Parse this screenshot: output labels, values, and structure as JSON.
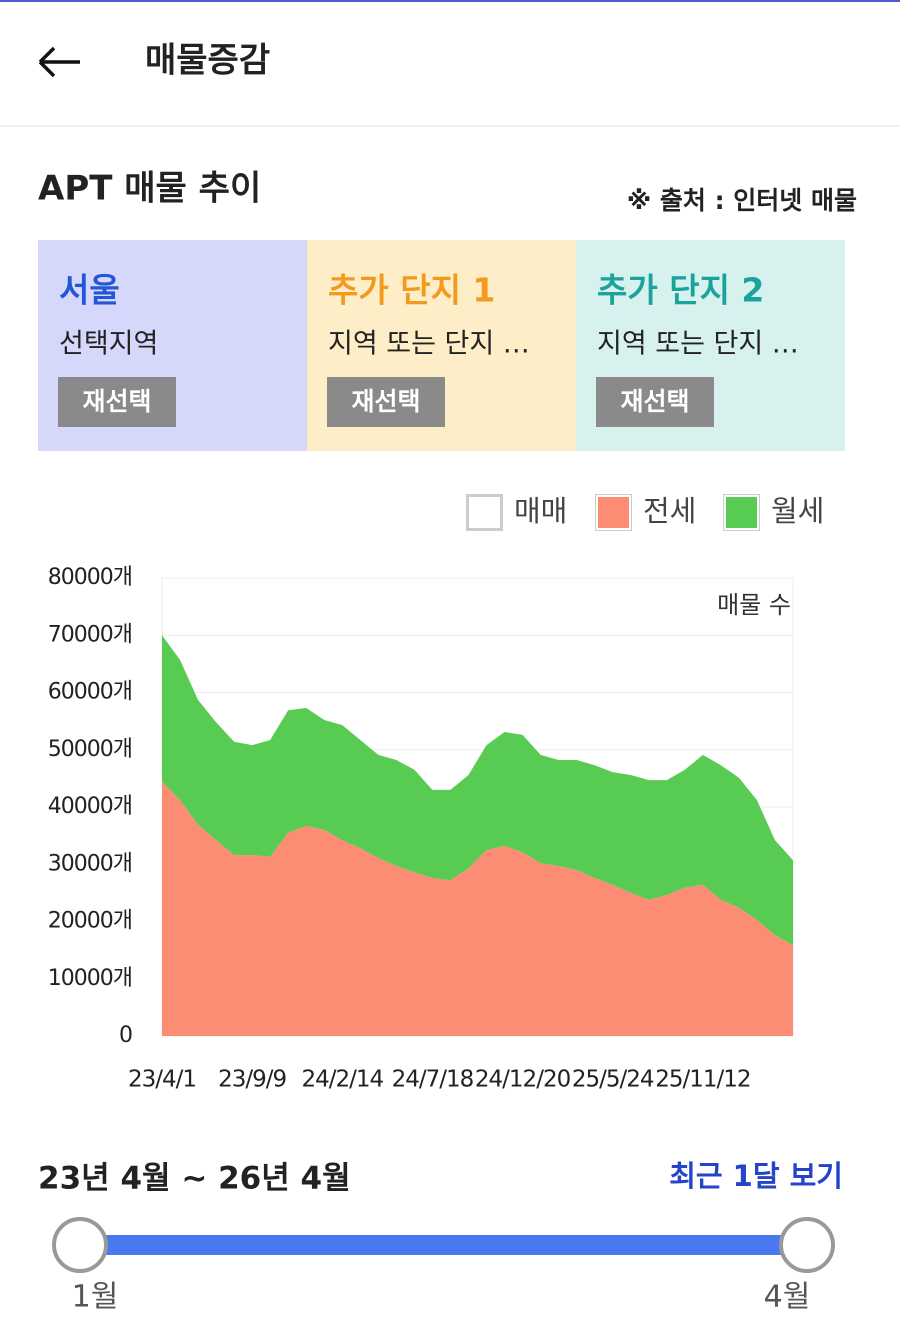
{
  "header": {
    "title": "매물증감"
  },
  "section": {
    "title": "APT 매물 추이",
    "source": "※ 출처 : 인터넷 매물"
  },
  "selectors": [
    {
      "title": "서울",
      "subtitle": "선택지역",
      "button": "재선택",
      "color": "#2457d6",
      "background": "#d5d7fb"
    },
    {
      "title": "추가 단지 1",
      "subtitle": "지역 또는 단지 …",
      "button": "재선택",
      "color": "#f39a1e",
      "background": "#fdeec8"
    },
    {
      "title": "추가 단지 2",
      "subtitle": "지역 또는 단지 …",
      "button": "재선택",
      "color": "#1aa39b",
      "background": "#d7f1ef"
    }
  ],
  "chart_data": {
    "type": "stacked_area",
    "annotation": "매물 수",
    "categories": [
      "23/4/1",
      null,
      null,
      null,
      null,
      "23/9/9",
      null,
      null,
      null,
      null,
      "24/2/14",
      null,
      null,
      null,
      null,
      "24/7/18",
      null,
      null,
      null,
      null,
      "24/12/20",
      null,
      null,
      null,
      null,
      "25/5/24",
      null,
      null,
      null,
      null,
      "25/11/12",
      null,
      null,
      null,
      null,
      null
    ],
    "series": [
      {
        "name": "매매",
        "color": "#ffffff",
        "values": [
          null,
          null,
          null,
          null,
          null,
          null,
          null,
          null,
          null,
          null,
          null,
          null,
          null,
          null,
          null,
          null,
          null,
          null,
          null,
          null,
          null,
          null,
          null,
          null,
          null,
          null,
          null,
          null,
          null,
          null,
          null,
          null,
          null,
          null,
          null,
          null
        ]
      },
      {
        "name": "전세",
        "color": "#fc8c73",
        "values": [
          44400,
          41200,
          36900,
          34200,
          31600,
          31600,
          31300,
          35500,
          36700,
          36000,
          34200,
          32800,
          31100,
          29700,
          28600,
          27600,
          27200,
          29300,
          32500,
          33200,
          32100,
          30200,
          29700,
          29000,
          27600,
          26400,
          25000,
          23800,
          24600,
          25900,
          26400,
          23800,
          22400,
          20300,
          17600,
          15900
        ]
      },
      {
        "name": "월세",
        "color": "#58cb52",
        "values": [
          25600,
          24500,
          21800,
          20600,
          19800,
          19200,
          20400,
          21400,
          20600,
          19200,
          20100,
          18900,
          18000,
          18500,
          17900,
          15400,
          15800,
          16300,
          18300,
          19900,
          20500,
          18900,
          18500,
          19200,
          19700,
          19700,
          20600,
          20900,
          20100,
          20600,
          22700,
          23500,
          22700,
          20900,
          16600,
          14800
        ]
      }
    ],
    "ylim": [
      0,
      80000
    ],
    "yticks": [
      0,
      {
        "value": 10000,
        "label": "10000개"
      },
      {
        "value": 20000,
        "label": "20000개"
      },
      {
        "value": 30000,
        "label": "30000개"
      },
      {
        "value": 40000,
        "label": "40000개"
      },
      {
        "value": 50000,
        "label": "50000개"
      },
      {
        "value": 60000,
        "label": "60000개"
      },
      {
        "value": 70000,
        "label": "70000개"
      },
      {
        "value": 80000,
        "label": "80000개"
      }
    ],
    "grid": true,
    "legend": "top-right"
  },
  "range": {
    "label": "23년 4월 ~ 26년 4월",
    "recent": "최근 1달 보기",
    "start": "1월",
    "end": "4월"
  }
}
